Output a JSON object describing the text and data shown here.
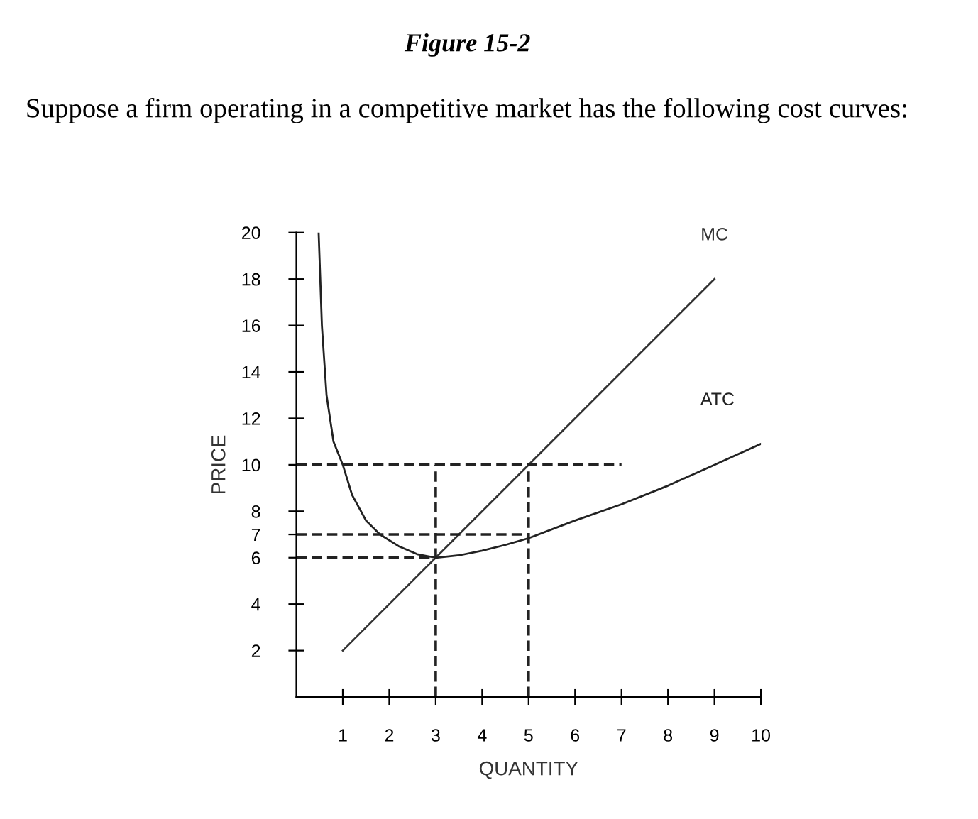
{
  "chart_data": {
    "type": "line",
    "title": "Figure 15-2",
    "subtitle": "Suppose a firm operating in a competitive market has the following cost curves:",
    "xlabel": "QUANTITY",
    "ylabel": "PRICE",
    "xlim": [
      0,
      10
    ],
    "ylim": [
      0,
      20
    ],
    "xticks": [
      1,
      2,
      3,
      4,
      5,
      6,
      7,
      8,
      9,
      10
    ],
    "yticks": [
      2,
      4,
      6,
      7,
      8,
      10,
      12,
      14,
      16,
      18,
      20
    ],
    "grid": false,
    "legend": false,
    "marker": "none",
    "series": [
      {
        "name": "MC",
        "color": "#333333",
        "line_style": "solid",
        "x": [
          1,
          9
        ],
        "values": [
          2,
          18
        ]
      },
      {
        "name": "ATC",
        "color": "#222222",
        "line_style": "solid",
        "x": [
          0.48,
          0.55,
          0.65,
          0.8,
          1.0,
          1.2,
          1.5,
          1.8,
          2.2,
          2.6,
          3,
          3.5,
          4,
          4.5,
          5,
          6,
          7,
          8,
          9,
          10
        ],
        "values": [
          20,
          16,
          13,
          11,
          10,
          8.7,
          7.6,
          7.0,
          6.5,
          6.15,
          6,
          6.1,
          6.3,
          6.55,
          6.84,
          7.6,
          8.3,
          9.1,
          10,
          10.9
        ]
      },
      {
        "color": "#222222",
        "line_style": "dashed",
        "x": [
          0,
          7
        ],
        "values": [
          10,
          10
        ]
      },
      {
        "color": "#222222",
        "line_style": "dashed",
        "x": [
          0,
          5
        ],
        "values": [
          7,
          7
        ]
      },
      {
        "color": "#222222",
        "line_style": "dashed",
        "x": [
          0,
          3
        ],
        "values": [
          6,
          6
        ]
      },
      {
        "color": "#222222",
        "line_style": "dashed",
        "x": [
          3,
          3
        ],
        "values": [
          0,
          10
        ]
      },
      {
        "color": "#222222",
        "line_style": "dashed",
        "x": [
          5,
          5
        ],
        "values": [
          0,
          10
        ]
      }
    ]
  }
}
